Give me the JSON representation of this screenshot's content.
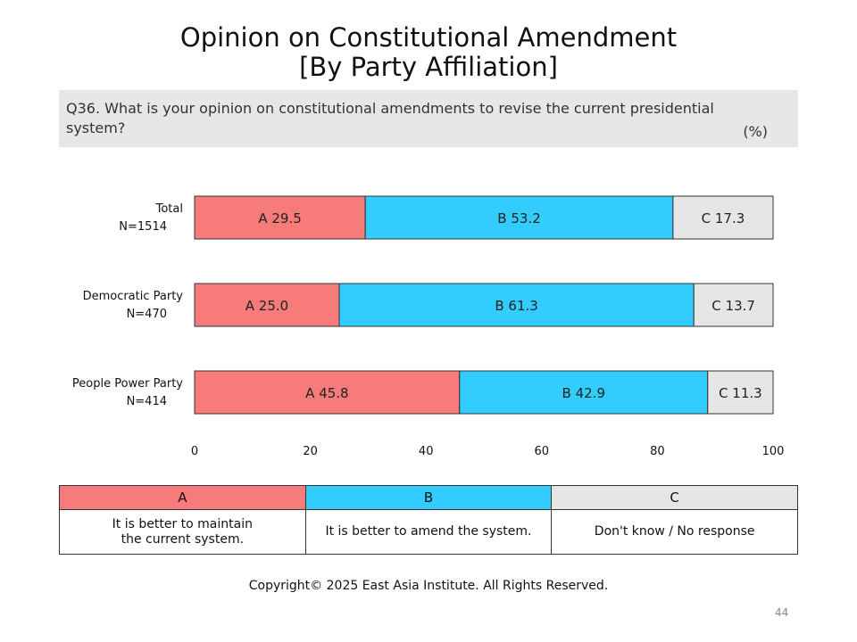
{
  "title_line1": "Opinion on Constitutional Amendment",
  "title_line2": "[By Party Affiliation]",
  "question": "Q36. What is your opinion on constitutional amendments to revise the current presidential system?",
  "unit": "(%)",
  "colors": {
    "A": "#f77b7b",
    "B": "#33ccff",
    "C": "#e6e6e6"
  },
  "chart_data": {
    "type": "bar",
    "orientation": "horizontal",
    "stacked": true,
    "categories": [
      {
        "name": "Total",
        "n": "N=1514"
      },
      {
        "name": "Democratic Party",
        "n": "N=470"
      },
      {
        "name": "People Power Party",
        "n": "N=414"
      }
    ],
    "series": [
      {
        "name": "A",
        "values": [
          29.5,
          25.0,
          45.8
        ]
      },
      {
        "name": "B",
        "values": [
          53.2,
          61.3,
          42.9
        ]
      },
      {
        "name": "C",
        "values": [
          17.3,
          13.7,
          11.3
        ]
      }
    ],
    "data_labels": [
      [
        "A 29.5",
        "B 53.2",
        "C 17.3"
      ],
      [
        "A 25.0",
        "B 61.3",
        "C 13.7"
      ],
      [
        "A 45.8",
        "B 42.9",
        "C 11.3"
      ]
    ],
    "xlim": [
      0,
      100
    ],
    "xticks": [
      0,
      20,
      40,
      60,
      80,
      100
    ],
    "grid": false
  },
  "legend": {
    "headers": [
      "A",
      "B",
      "C"
    ],
    "descriptions": [
      [
        "It is better to maintain",
        "the current system."
      ],
      [
        "It is better to amend the system."
      ],
      [
        "Don't know / No response"
      ]
    ]
  },
  "copyright": "Copyright© 2025 East Asia Institute. All Rights Reserved.",
  "page_number": "44"
}
